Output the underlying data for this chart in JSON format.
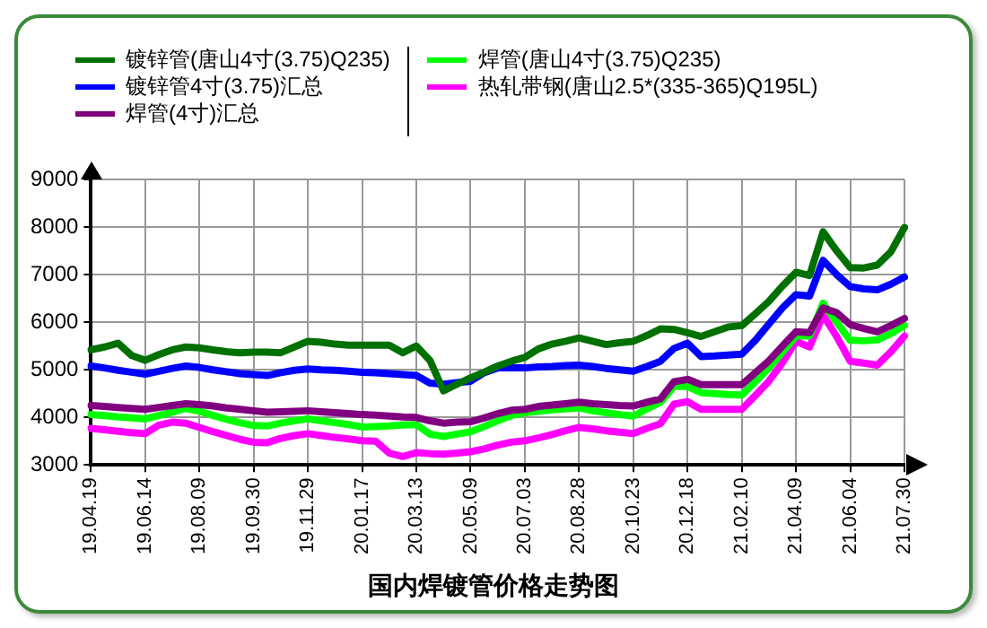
{
  "chart_data": {
    "type": "line",
    "title": "国内焊镀管价格走势图",
    "categories": [
      "19.04.19",
      null,
      null,
      null,
      "19.06.14",
      null,
      null,
      null,
      "19.08.09",
      null,
      null,
      null,
      "19.09.30",
      null,
      null,
      null,
      "19.11.29",
      null,
      null,
      null,
      "20.01.17",
      null,
      null,
      null,
      "20.03.13",
      null,
      null,
      null,
      "20.05.09",
      null,
      null,
      null,
      "20.07.03",
      null,
      null,
      null,
      "20.08.28",
      null,
      null,
      null,
      "20.10.23",
      null,
      null,
      null,
      "20.12.18",
      null,
      null,
      null,
      "21.02.10",
      null,
      null,
      null,
      "21.04.09",
      null,
      null,
      null,
      "21.06.04",
      null,
      null,
      null,
      "21.07.30"
    ],
    "ylim": [
      3000,
      9000
    ],
    "yticks": [
      3000,
      4000,
      5000,
      6000,
      7000,
      8000,
      9000
    ],
    "grid": true,
    "legend": "top",
    "marker": "none",
    "line_style": "solid",
    "series": [
      {
        "name": "镀锌管(唐山4寸(3.75)Q235)",
        "color": "#007000",
        "values": [
          5420,
          5480,
          5560,
          5300,
          5200,
          5320,
          5420,
          5480,
          5460,
          5420,
          5380,
          5360,
          5370,
          5370,
          5360,
          5480,
          5600,
          5580,
          5540,
          5520,
          5520,
          5520,
          5520,
          5360,
          5500,
          5200,
          4560,
          4700,
          4830,
          4950,
          5080,
          5180,
          5260,
          5440,
          5540,
          5600,
          5670,
          5600,
          5530,
          5570,
          5600,
          5720,
          5860,
          5850,
          5780,
          5700,
          5800,
          5900,
          5930,
          6180,
          6440,
          6760,
          7050,
          6980,
          7900,
          7500,
          7150,
          7140,
          7200,
          7480,
          7990
        ]
      },
      {
        "name": "镀锌管4寸(3.75)汇总",
        "color": "#0000ff",
        "values": [
          5080,
          5040,
          4990,
          4950,
          4910,
          4970,
          5030,
          5080,
          5050,
          5000,
          4960,
          4920,
          4900,
          4880,
          4940,
          4990,
          5020,
          5000,
          4990,
          4970,
          4950,
          4940,
          4920,
          4900,
          4880,
          4720,
          4700,
          4730,
          4760,
          4940,
          5040,
          5040,
          5040,
          5060,
          5070,
          5090,
          5100,
          5070,
          5030,
          5000,
          4970,
          5070,
          5180,
          5450,
          5560,
          5280,
          5290,
          5310,
          5330,
          5620,
          5960,
          6300,
          6580,
          6550,
          7300,
          7000,
          6750,
          6700,
          6680,
          6800,
          6950
        ]
      },
      {
        "name": "焊管(4寸)汇总",
        "color": "#800080",
        "values": [
          4250,
          4230,
          4210,
          4190,
          4170,
          4210,
          4250,
          4290,
          4270,
          4240,
          4200,
          4170,
          4140,
          4110,
          4120,
          4130,
          4140,
          4120,
          4100,
          4080,
          4060,
          4050,
          4030,
          4010,
          4000,
          3930,
          3880,
          3900,
          3910,
          3990,
          4080,
          4150,
          4170,
          4230,
          4260,
          4290,
          4320,
          4290,
          4270,
          4250,
          4240,
          4320,
          4390,
          4750,
          4800,
          4690,
          4690,
          4690,
          4690,
          4940,
          5190,
          5500,
          5800,
          5780,
          6300,
          6200,
          5950,
          5870,
          5800,
          5930,
          6080
        ]
      },
      {
        "name": "焊管(唐山4寸(3.75)Q235)",
        "color": "#00ff00",
        "values": [
          4060,
          4040,
          4010,
          3990,
          3970,
          4040,
          4110,
          4190,
          4130,
          4040,
          3960,
          3890,
          3830,
          3820,
          3880,
          3930,
          3970,
          3930,
          3890,
          3850,
          3800,
          3810,
          3820,
          3840,
          3850,
          3650,
          3600,
          3650,
          3700,
          3810,
          3930,
          4040,
          4100,
          4130,
          4160,
          4180,
          4200,
          4140,
          4100,
          4060,
          4030,
          4180,
          4320,
          4650,
          4650,
          4520,
          4500,
          4480,
          4470,
          4750,
          5040,
          5370,
          5710,
          5710,
          6400,
          6000,
          5620,
          5610,
          5630,
          5760,
          5930
        ]
      },
      {
        "name": "热轧带钢(唐山2.5*(335-365)Q195L)",
        "color": "#ff00ff",
        "values": [
          3770,
          3740,
          3710,
          3680,
          3660,
          3840,
          3900,
          3880,
          3790,
          3700,
          3620,
          3540,
          3480,
          3470,
          3560,
          3620,
          3660,
          3620,
          3580,
          3550,
          3510,
          3500,
          3250,
          3180,
          3260,
          3240,
          3230,
          3250,
          3280,
          3340,
          3420,
          3480,
          3510,
          3570,
          3640,
          3720,
          3790,
          3760,
          3720,
          3690,
          3660,
          3770,
          3870,
          4280,
          4330,
          4170,
          4170,
          4170,
          4170,
          4460,
          4760,
          5150,
          5600,
          5480,
          6150,
          5700,
          5180,
          5140,
          5100,
          5380,
          5710
        ]
      }
    ]
  }
}
